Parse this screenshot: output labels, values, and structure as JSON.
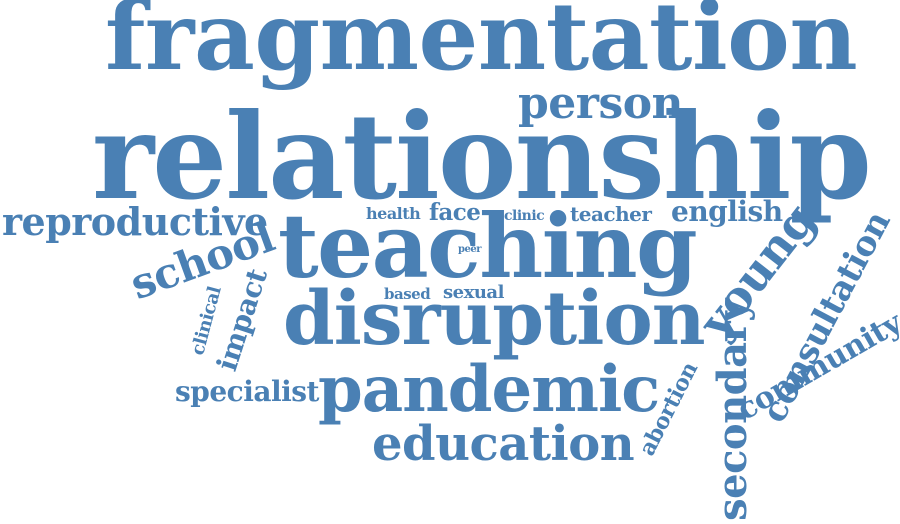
{
  "color": "#4a80b4",
  "words": [
    {
      "key": "w01",
      "text": "fragmentation"
    },
    {
      "key": "w02",
      "text": "person"
    },
    {
      "key": "w03",
      "text": "relationship"
    },
    {
      "key": "w04",
      "text": "reproductive"
    },
    {
      "key": "w05",
      "text": "health"
    },
    {
      "key": "w06",
      "text": "face"
    },
    {
      "key": "w07",
      "text": "clinic"
    },
    {
      "key": "w08",
      "text": "teacher"
    },
    {
      "key": "w09",
      "text": "english"
    },
    {
      "key": "w10",
      "text": "school"
    },
    {
      "key": "w11",
      "text": "teaching"
    },
    {
      "key": "w12",
      "text": "peer"
    },
    {
      "key": "w13",
      "text": "young"
    },
    {
      "key": "w14",
      "text": "consultation"
    },
    {
      "key": "w15",
      "text": "impact"
    },
    {
      "key": "w16",
      "text": "clinical"
    },
    {
      "key": "w17",
      "text": "based"
    },
    {
      "key": "w18",
      "text": "sexual"
    },
    {
      "key": "w19",
      "text": "disruption"
    },
    {
      "key": "w20",
      "text": "secondary"
    },
    {
      "key": "w21",
      "text": "community"
    },
    {
      "key": "w22",
      "text": "specialist"
    },
    {
      "key": "w23",
      "text": "pandemic"
    },
    {
      "key": "w24",
      "text": "abortion"
    },
    {
      "key": "w25",
      "text": "education"
    }
  ]
}
